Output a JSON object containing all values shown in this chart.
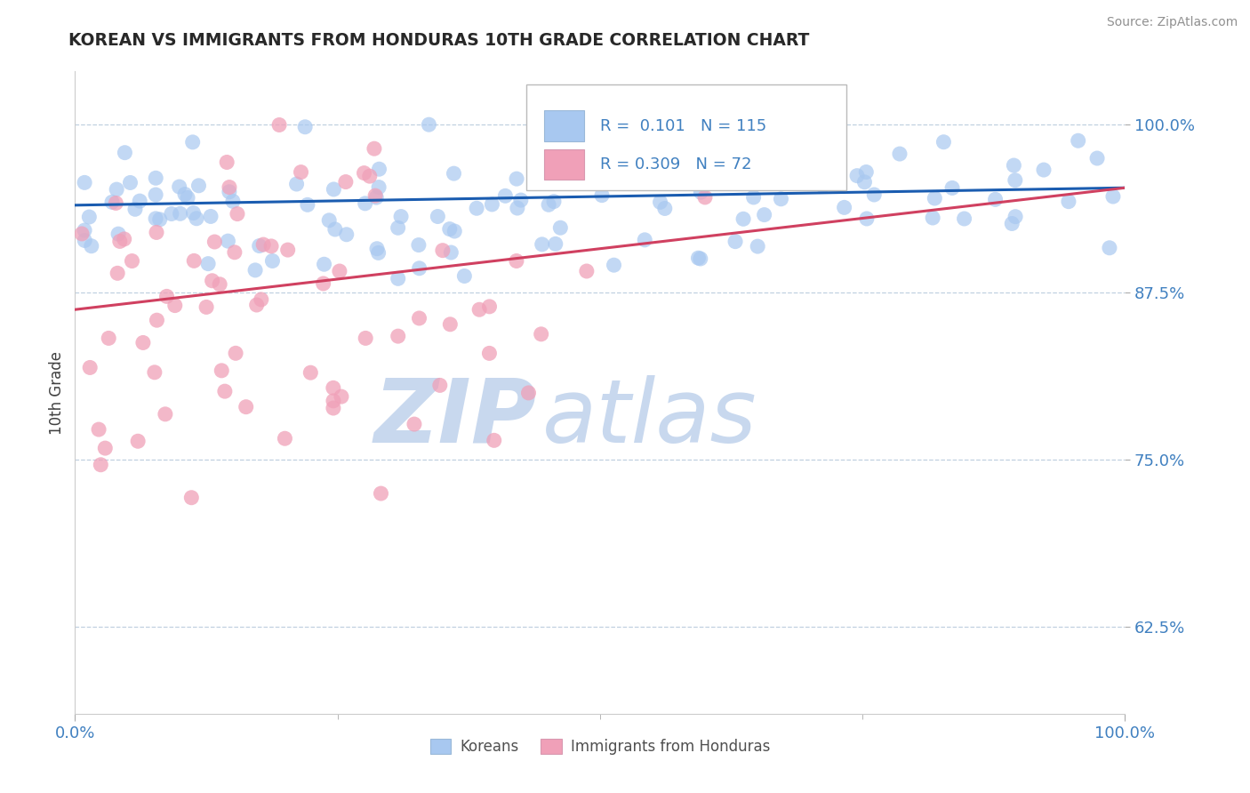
{
  "title": "KOREAN VS IMMIGRANTS FROM HONDURAS 10TH GRADE CORRELATION CHART",
  "source_text": "Source: ZipAtlas.com",
  "ylabel": "10th Grade",
  "xlim": [
    0.0,
    1.0
  ],
  "ylim": [
    0.56,
    1.04
  ],
  "yticks": [
    0.625,
    0.75,
    0.875,
    1.0
  ],
  "ytick_labels": [
    "62.5%",
    "75.0%",
    "87.5%",
    "100.0%"
  ],
  "xtick_left_label": "0.0%",
  "xtick_right_label": "100.0%",
  "korean_color": "#a8c8f0",
  "honduran_color": "#f0a0b8",
  "korean_R": 0.101,
  "korean_N": 115,
  "honduran_R": 0.309,
  "honduran_N": 72,
  "trend_blue": "#1a5cb0",
  "trend_pink": "#d04060",
  "legend_blue_label": "Koreans",
  "legend_pink_label": "Immigrants from Honduras",
  "background_color": "#ffffff",
  "grid_color": "#c0d0e0",
  "title_color": "#282828",
  "axis_label_color": "#404040",
  "tick_color": "#4080c0",
  "watermark_zip_color": "#c8d8ee",
  "watermark_atlas_color": "#c8d8ee",
  "source_color": "#909090",
  "blue_trend_y0": 0.94,
  "blue_trend_y1": 0.953,
  "pink_trend_y0": 0.862,
  "pink_trend_y1": 0.953,
  "pink_trend_x0": 0.0,
  "pink_trend_x1": 1.0
}
